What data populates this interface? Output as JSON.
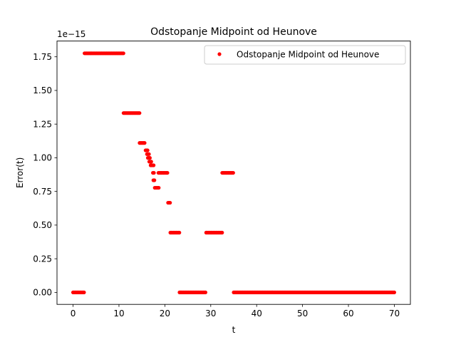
{
  "chart_data": {
    "type": "scatter",
    "title": "Odstopanje Midpoint od Heunove",
    "xlabel": "t",
    "ylabel": "Error(t)",
    "y_scale_label": "1e−15",
    "xlim": [
      -3.5,
      73.5
    ],
    "ylim": [
      -0.089,
      1.867
    ],
    "x_ticks": [
      0,
      10,
      20,
      30,
      40,
      50,
      60,
      70
    ],
    "x_tick_labels": [
      "0",
      "10",
      "20",
      "30",
      "40",
      "50",
      "60",
      "70"
    ],
    "y_ticks": [
      0.0,
      0.25,
      0.5,
      0.75,
      1.0,
      1.25,
      1.5,
      1.75
    ],
    "y_tick_labels": [
      "0.00",
      "0.25",
      "0.50",
      "0.75",
      "1.00",
      "1.25",
      "1.50",
      "1.75"
    ],
    "grid": false,
    "legend_position": "top-right",
    "series": [
      {
        "name": "Odstopanje Midpoint od Heunove",
        "color": "#ff0000",
        "marker": "point",
        "segments": [
          {
            "x_start": 0.0,
            "x_end": 2.5,
            "y": 0.0
          },
          {
            "x_start": 2.5,
            "x_end": 11.0,
            "y": 1.776
          },
          {
            "x_start": 11.0,
            "x_end": 14.5,
            "y": 1.332
          },
          {
            "x_start": 14.5,
            "x_end": 15.8,
            "y": 1.11
          },
          {
            "x_start": 15.8,
            "x_end": 16.4,
            "y": 1.055
          },
          {
            "x_start": 16.1,
            "x_end": 16.6,
            "y": 1.027
          },
          {
            "x_start": 16.3,
            "x_end": 16.9,
            "y": 0.999
          },
          {
            "x_start": 16.6,
            "x_end": 17.2,
            "y": 0.971
          },
          {
            "x_start": 16.9,
            "x_end": 17.6,
            "y": 0.944
          },
          {
            "x_start": 17.4,
            "x_end": 17.8,
            "y": 0.888
          },
          {
            "x_start": 17.5,
            "x_end": 17.9,
            "y": 0.833
          },
          {
            "x_start": 17.8,
            "x_end": 18.8,
            "y": 0.777
          },
          {
            "x_start": 18.6,
            "x_end": 20.7,
            "y": 0.888
          },
          {
            "x_start": 20.7,
            "x_end": 21.2,
            "y": 0.666
          },
          {
            "x_start": 21.2,
            "x_end": 23.2,
            "y": 0.444
          },
          {
            "x_start": 23.2,
            "x_end": 29.0,
            "y": 0.0
          },
          {
            "x_start": 29.0,
            "x_end": 32.5,
            "y": 0.444
          },
          {
            "x_start": 32.5,
            "x_end": 35.0,
            "y": 0.888
          },
          {
            "x_start": 35.0,
            "x_end": 70.0,
            "y": 0.0
          }
        ]
      }
    ]
  }
}
